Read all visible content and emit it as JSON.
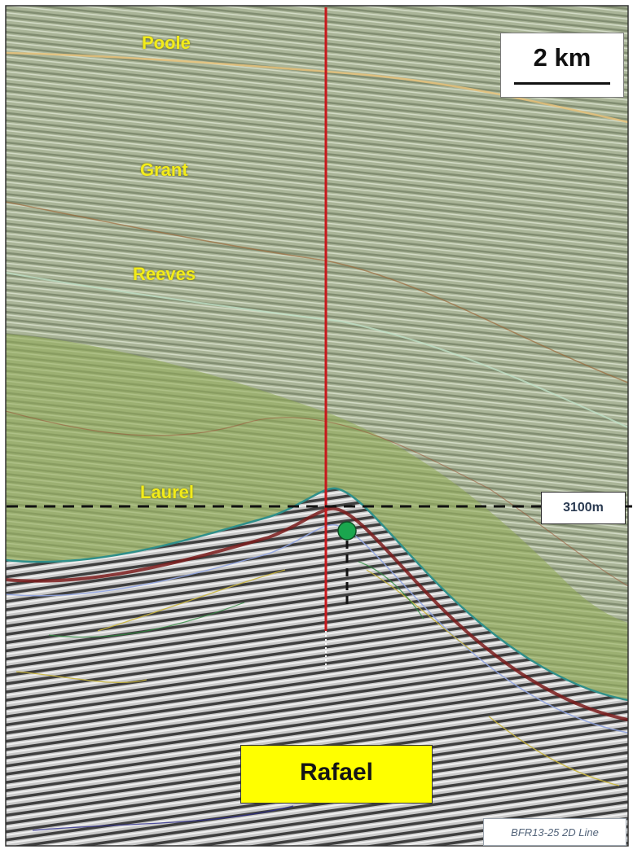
{
  "horizons": [
    {
      "label": "Poole"
    },
    {
      "label": "Grant"
    },
    {
      "label": "Reeves"
    },
    {
      "label": "Laurel"
    }
  ],
  "scale_bar": {
    "label": "2 km"
  },
  "depth_marker": {
    "label": "3100m"
  },
  "prospect": {
    "label": "Rafael"
  },
  "line_id": {
    "label": "BFR13-25 2D Line"
  },
  "colors": {
    "horizon_label": "#f2ec1a",
    "seismic_background": "#a9b397",
    "highlight_interval": "#8fab54",
    "well_path": "#c8171c",
    "target_point": "#1aa64e",
    "prospect_box": "#ffff00"
  }
}
